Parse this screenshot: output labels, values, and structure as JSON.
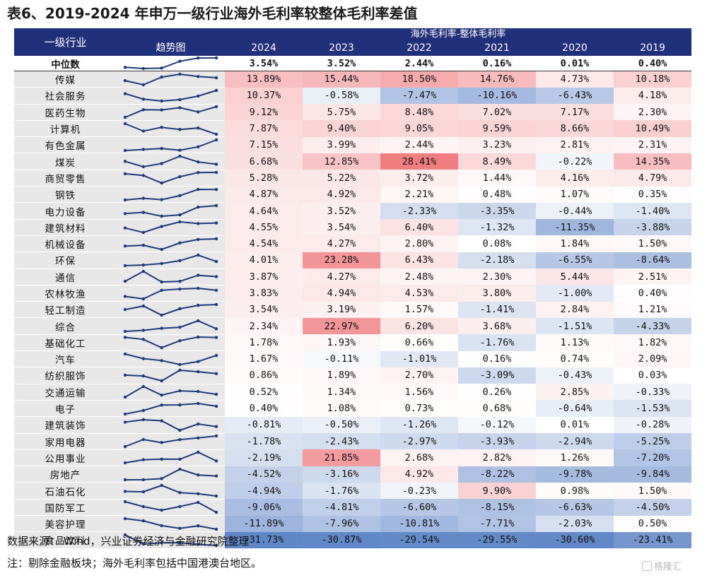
{
  "title": "表6、2019-2024 年申万一级行业海外毛利率较整体毛利率差值",
  "header": {
    "industry_label": "一级行业",
    "trend_label": "趋势图",
    "group_label": "海外毛利率-整体毛利率",
    "years": [
      "2024",
      "2023",
      "2022",
      "2021",
      "2020",
      "2019"
    ]
  },
  "median": {
    "label": "中位数",
    "values": [
      "3.54%",
      "3.52%",
      "2.44%",
      "0.16%",
      "0.01%",
      "0.40%"
    ]
  },
  "rows": [
    {
      "name": "传媒",
      "values": [
        "13.89%",
        "15.44%",
        "18.50%",
        "14.76%",
        "4.73%",
        "10.18%"
      ]
    },
    {
      "name": "社会服务",
      "values": [
        "10.37%",
        "-0.58%",
        "-7.47%",
        "-10.16%",
        "-6.43%",
        "4.18%"
      ]
    },
    {
      "name": "医药生物",
      "values": [
        "9.12%",
        "5.75%",
        "8.48%",
        "7.02%",
        "7.17%",
        "2.30%"
      ]
    },
    {
      "name": "计算机",
      "values": [
        "7.87%",
        "9.40%",
        "9.05%",
        "9.59%",
        "8.66%",
        "10.49%"
      ]
    },
    {
      "name": "有色金属",
      "values": [
        "7.15%",
        "3.99%",
        "2.44%",
        "3.23%",
        "2.81%",
        "2.31%"
      ]
    },
    {
      "name": "煤炭",
      "values": [
        "6.68%",
        "12.85%",
        "28.41%",
        "8.49%",
        "-0.22%",
        "14.35%"
      ]
    },
    {
      "name": "商贸零售",
      "values": [
        "5.28%",
        "5.22%",
        "3.72%",
        "1.44%",
        "4.16%",
        "4.79%"
      ]
    },
    {
      "name": "钢铁",
      "values": [
        "4.87%",
        "4.92%",
        "2.21%",
        "0.48%",
        "1.07%",
        "0.35%"
      ]
    },
    {
      "name": "电力设备",
      "values": [
        "4.64%",
        "3.52%",
        "-2.33%",
        "-3.35%",
        "-0.44%",
        "-1.40%"
      ]
    },
    {
      "name": "建筑材料",
      "values": [
        "4.55%",
        "3.54%",
        "6.40%",
        "-1.32%",
        "-11.35%",
        "-3.88%"
      ]
    },
    {
      "name": "机械设备",
      "values": [
        "4.54%",
        "4.27%",
        "2.80%",
        "0.08%",
        "1.84%",
        "1.50%"
      ]
    },
    {
      "name": "环保",
      "values": [
        "4.01%",
        "23.28%",
        "6.43%",
        "-2.18%",
        "-6.55%",
        "-8.64%"
      ]
    },
    {
      "name": "通信",
      "values": [
        "3.87%",
        "4.27%",
        "2.48%",
        "2.30%",
        "5.44%",
        "2.51%"
      ]
    },
    {
      "name": "农林牧渔",
      "values": [
        "3.83%",
        "4.94%",
        "4.53%",
        "3.80%",
        "-1.00%",
        "0.40%"
      ]
    },
    {
      "name": "轻工制造",
      "values": [
        "3.54%",
        "3.19%",
        "1.57%",
        "-1.41%",
        "2.84%",
        "1.21%"
      ]
    },
    {
      "name": "综合",
      "values": [
        "2.34%",
        "22.97%",
        "6.20%",
        "3.68%",
        "-1.51%",
        "-4.33%"
      ]
    },
    {
      "name": "基础化工",
      "values": [
        "1.78%",
        "1.93%",
        "0.66%",
        "-1.76%",
        "1.13%",
        "1.82%"
      ]
    },
    {
      "name": "汽车",
      "values": [
        "1.67%",
        "-0.11%",
        "-1.01%",
        "0.16%",
        "0.74%",
        "2.09%"
      ]
    },
    {
      "name": "纺织服饰",
      "values": [
        "0.86%",
        "1.89%",
        "2.70%",
        "-3.09%",
        "-0.43%",
        "0.03%"
      ]
    },
    {
      "name": "交通运输",
      "values": [
        "0.52%",
        "1.34%",
        "1.56%",
        "0.26%",
        "2.85%",
        "-0.33%"
      ]
    },
    {
      "name": "电子",
      "values": [
        "0.40%",
        "1.08%",
        "0.73%",
        "0.68%",
        "-0.64%",
        "-1.53%"
      ]
    },
    {
      "name": "建筑装饰",
      "values": [
        "-0.81%",
        "-0.50%",
        "-1.26%",
        "-0.12%",
        "0.01%",
        "-0.28%"
      ]
    },
    {
      "name": "家用电器",
      "values": [
        "-1.78%",
        "-2.43%",
        "-2.97%",
        "-3.93%",
        "-2.94%",
        "-5.25%"
      ]
    },
    {
      "name": "公用事业",
      "values": [
        "-2.19%",
        "21.85%",
        "2.68%",
        "2.82%",
        "1.26%",
        "-7.20%"
      ]
    },
    {
      "name": "房地产",
      "values": [
        "-4.52%",
        "-3.16%",
        "4.92%",
        "-8.22%",
        "-9.78%",
        "-9.84%"
      ]
    },
    {
      "name": "石油石化",
      "values": [
        "-4.94%",
        "-1.76%",
        "-0.23%",
        "9.90%",
        "0.98%",
        "1.50%"
      ]
    },
    {
      "name": "国防军工",
      "values": [
        "-9.06%",
        "-4.81%",
        "-6.60%",
        "-8.15%",
        "-6.63%",
        "-4.50%"
      ]
    },
    {
      "name": "美容护理",
      "values": [
        "-11.89%",
        "-7.96%",
        "-10.81%",
        "-7.71%",
        "-2.03%",
        "0.50%"
      ]
    },
    {
      "name": "食品饮料",
      "values": [
        "-31.73%",
        "-30.87%",
        "-29.54%",
        "-29.55%",
        "-30.60%",
        "-23.41%"
      ]
    }
  ],
  "footer": {
    "source": "数据来源：  Wind，兴业证券经济与金融研究院整理",
    "note": "注：剔除金融板块；海外毛利率包括中国港澳台地区。"
  },
  "watermark": "格隆汇",
  "colors": {
    "header_bg": "#21307a",
    "positive_max": "#f08080",
    "negative_max": "#5f86c6",
    "sparkline": "#1f3a7a",
    "label_bg": "#e8e8e8"
  }
}
